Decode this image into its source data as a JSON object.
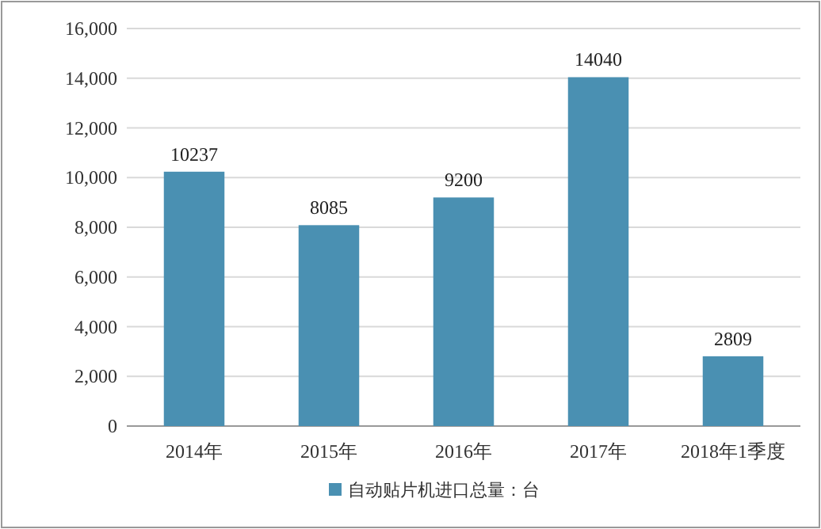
{
  "chart_data": {
    "type": "bar",
    "categories": [
      "2014年",
      "2015年",
      "2016年",
      "2017年",
      "2018年1季度"
    ],
    "series": [
      {
        "name": "自动贴片机进口总量：台",
        "color": "#4a90b2",
        "values": [
          10237,
          8085,
          9200,
          14040,
          2809
        ]
      }
    ],
    "ylim": [
      0,
      16000
    ],
    "yticks": [
      0,
      {
        "value": 2000,
        "label": "2,000"
      },
      {
        "value": 4000,
        "label": "4,000"
      },
      {
        "value": 6000,
        "label": "6,000"
      },
      {
        "value": 8000,
        "label": "8,000"
      },
      {
        "value": 10000,
        "label": "10,000"
      },
      {
        "value": 12000,
        "label": "12,000"
      },
      {
        "value": 14000,
        "label": "14,000"
      },
      {
        "value": 16000,
        "label": "16,000"
      }
    ],
    "grid": "y",
    "legend": "bottom",
    "data_labels": true
  }
}
